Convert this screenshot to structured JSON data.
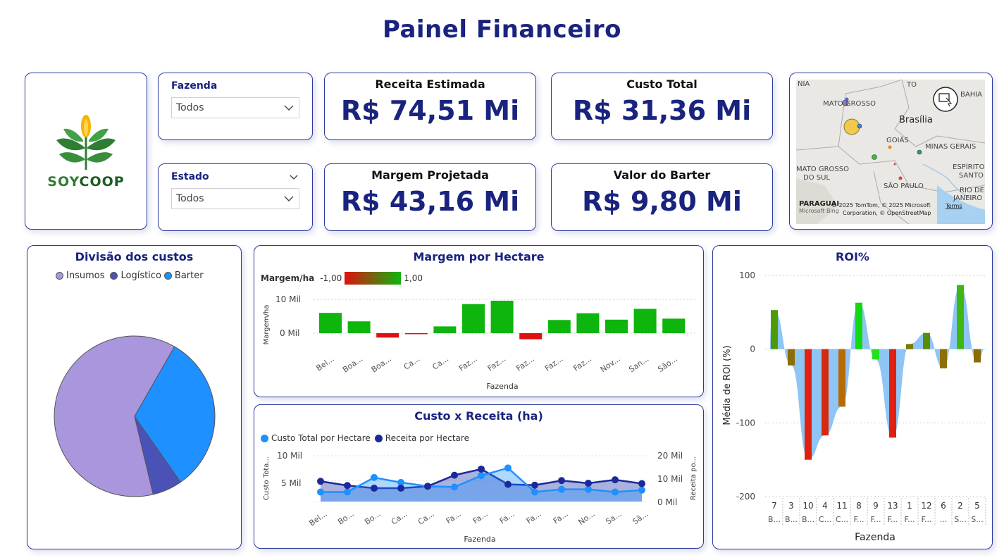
{
  "header": {
    "title": "Painel Financeiro"
  },
  "logo": {
    "soy": "SOY",
    "coop": "COOP"
  },
  "filters": {
    "fazenda": {
      "label": "Fazenda",
      "value": "Todos"
    },
    "estado": {
      "label": "Estado",
      "value": "Todos"
    }
  },
  "kpis": {
    "receita": {
      "label": "Receita Estimada",
      "value": "R$ 74,51 Mi"
    },
    "custo": {
      "label": "Custo Total",
      "value": "R$ 31,36 Mi"
    },
    "margem": {
      "label": "Margem Projetada",
      "value": "R$ 43,16 Mi"
    },
    "barter": {
      "label": "Valor do Barter",
      "value": "R$ 9,80 Mi"
    }
  },
  "map": {
    "labels": [
      "TO",
      "BAHIA",
      "MATO GROSSO",
      "Brasília",
      "GOIÁS",
      "MINAS GERAIS",
      "MATO GROSSO",
      "DO SUL",
      "ESPÍRITO",
      "SANTO",
      "SÃO PAULO",
      "RIO DE",
      "JANEIRO",
      "PARAGUAI",
      "NIA"
    ],
    "credit1": "© 2025 TomTom, © 2025 Microsoft",
    "credit2": "Corporation, © OpenStreetMap",
    "terms": "Terms",
    "ms": "Microsoft Bing"
  },
  "colors": {
    "accent": "#1a237e",
    "insumos": "#a996dc",
    "logistico": "#4a52b8",
    "barter": "#1e90ff",
    "green": "#0db50d",
    "red": "#e01010"
  },
  "chart_data": [
    {
      "id": "divisao",
      "type": "pie",
      "title": "Divisão dos custos",
      "legend": [
        "Insumos",
        "Logístico",
        "Barter"
      ],
      "values": [
        62,
        6,
        32
      ]
    },
    {
      "id": "margem",
      "type": "bar",
      "title": "Margem por Hectare",
      "gradient_label": "Margem/ha",
      "gradient_min": "-1,00",
      "gradient_max": "1,00",
      "xlabel": "Fazenda",
      "ylabel": "Margem/ha",
      "yticks": [
        "10 Mil",
        "0 Mil"
      ],
      "ylim": [
        -2,
        11
      ],
      "categories": [
        "Bel...",
        "Boa...",
        "Boa...",
        "Ca...",
        "Ca...",
        "Faz...",
        "Faz...",
        "Faz...",
        "Faz...",
        "Faz...",
        "Nov...",
        "San...",
        "São..."
      ],
      "values": [
        6.0,
        3.5,
        -1.3,
        -0.3,
        2.0,
        8.6,
        9.6,
        -1.8,
        3.9,
        5.9,
        4.0,
        7.2,
        4.3
      ]
    },
    {
      "id": "custo_receita",
      "type": "area",
      "title": "Custo x Receita (ha)",
      "xlabel": "Fazenda",
      "ylabel_left": "Custo Tota...",
      "ylabel_right": "Receita po...",
      "yticks_left": [
        "10 Mil",
        "5 Mil"
      ],
      "yticks_right": [
        "20 Mil",
        "10 Mil",
        "0 Mil"
      ],
      "categories": [
        "Bel...",
        "Bo...",
        "Bo...",
        "Ca...",
        "Ca...",
        "Fa...",
        "Fa...",
        "Fa...",
        "Fa...",
        "Fa...",
        "No...",
        "Sa...",
        "Sã..."
      ],
      "series": [
        {
          "name": "Custo Total por Hectare",
          "values": [
            2.5,
            2.5,
            6.3,
            5.0,
            4.0,
            3.8,
            6.8,
            8.8,
            2.5,
            3.2,
            3.2,
            2.5,
            3.0
          ]
        },
        {
          "name": "Receita por Hectare",
          "values": [
            5.3,
            4.2,
            3.5,
            3.5,
            4.0,
            6.9,
            8.5,
            4.5,
            4.3,
            5.5,
            4.8,
            5.7,
            4.7
          ]
        }
      ],
      "ylim": [
        0,
        12
      ]
    },
    {
      "id": "roi",
      "type": "bar",
      "title": "ROI%",
      "xlabel": "Fazenda",
      "ylabel": "Média de ROI (%)",
      "yticks": [
        "100",
        "0",
        "-100",
        "-200"
      ],
      "ylim": [
        -200,
        100
      ],
      "categories": [
        "7",
        "3",
        "10",
        "4",
        "11",
        "8",
        "9",
        "13",
        "1",
        "12",
        "6",
        "2",
        "5"
      ],
      "sublabels": [
        "B...",
        "B...",
        "B...",
        "C...",
        "C...",
        "F...",
        "F...",
        "F...",
        "F...",
        "F...",
        "...",
        "S...",
        "S..."
      ],
      "values": [
        53,
        -22,
        -150,
        -117,
        -78,
        63,
        -14,
        -120,
        7,
        22,
        -26,
        87,
        -18
      ],
      "bar_colors": [
        "#4e9a06",
        "#8a6d05",
        "#e02010",
        "#d42a10",
        "#b86a05",
        "#12d812",
        "#20e020",
        "#e02010",
        "#7a7a05",
        "#5a8c05",
        "#8a7005",
        "#3eb810",
        "#8a6d05"
      ]
    }
  ]
}
